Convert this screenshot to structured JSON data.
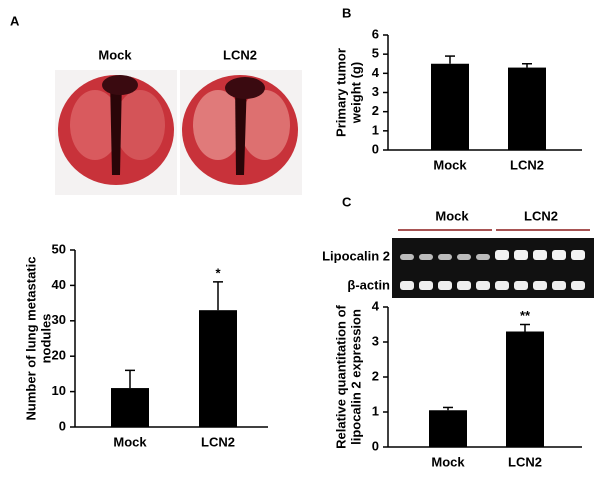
{
  "panel_labels": [
    "A",
    "B",
    "C"
  ],
  "photo_labels": [
    "Mock",
    "LCN2"
  ],
  "gel": {
    "group_labels": [
      "Mock",
      "LCN2"
    ],
    "row_labels": [
      "Lipocalin 2",
      "β-actin"
    ]
  },
  "chart_data": [
    {
      "type": "bar",
      "ylabel": [
        "Number of lung metastatic",
        "nodules"
      ],
      "categories": [
        "Mock",
        "LCN2"
      ],
      "values": [
        11,
        33
      ],
      "errors": [
        5,
        8
      ],
      "color": "#000000",
      "annotations": [
        null,
        "*"
      ],
      "ylim": [
        0,
        50
      ],
      "yticks": [
        0,
        10,
        20,
        30,
        40,
        50
      ],
      "grid": false
    },
    {
      "type": "bar",
      "ylabel": [
        "Primary  tumor",
        "weight (g)"
      ],
      "categories": [
        "Mock",
        "LCN2"
      ],
      "values": [
        4.5,
        4.3
      ],
      "errors": [
        0.4,
        0.2
      ],
      "color": "#000000",
      "ylim": [
        0,
        6
      ],
      "yticks": [
        0,
        1,
        2,
        3,
        4,
        5,
        6
      ],
      "grid": false
    },
    {
      "type": "bar",
      "ylabel": [
        "Relative quantitation of",
        "lipocalin 2  expression"
      ],
      "categories": [
        "Mock",
        "LCN2"
      ],
      "values": [
        1.05,
        3.3
      ],
      "errors": [
        0.08,
        0.2
      ],
      "color": "#000000",
      "annotations": [
        null,
        "**"
      ],
      "ylim": [
        0,
        4
      ],
      "yticks": [
        0,
        1,
        2,
        3,
        4
      ],
      "grid": false
    }
  ]
}
